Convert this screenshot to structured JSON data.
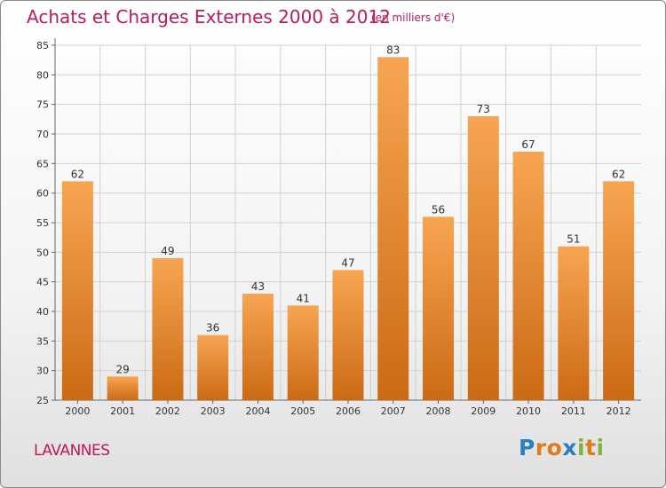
{
  "header": {
    "title": "Achats et Charges Externes 2000 à 2012",
    "subtitle": "(en milliers d'€)"
  },
  "footer": {
    "city": "LAVANNES",
    "logo_letters": [
      "P",
      "r",
      "o",
      "x",
      "i",
      "t",
      "i"
    ],
    "logo_colors": [
      "#2a7fc1",
      "#e07b1a",
      "#e07b1a",
      "#2a7fc1",
      "#7cb342",
      "#e07b1a",
      "#7cb342"
    ]
  },
  "colors": {
    "bar_light": "#f7a552",
    "bar_dark": "#cc6a14",
    "title": "#c2185b",
    "grid": "#d0d0d0"
  },
  "chart_data": {
    "type": "bar",
    "title": "Achats et Charges Externes 2000 à 2012",
    "subtitle": "(en milliers d'€)",
    "categories": [
      "2000",
      "2001",
      "2002",
      "2003",
      "2004",
      "2005",
      "2006",
      "2007",
      "2008",
      "2009",
      "2010",
      "2011",
      "2012"
    ],
    "values": [
      62,
      29,
      49,
      36,
      43,
      41,
      47,
      83,
      56,
      73,
      67,
      51,
      62
    ],
    "yticks": [
      25,
      30,
      35,
      40,
      45,
      50,
      55,
      60,
      65,
      70,
      75,
      80,
      85
    ],
    "ylim": [
      25,
      85
    ],
    "grid": true,
    "data_labels": true
  }
}
